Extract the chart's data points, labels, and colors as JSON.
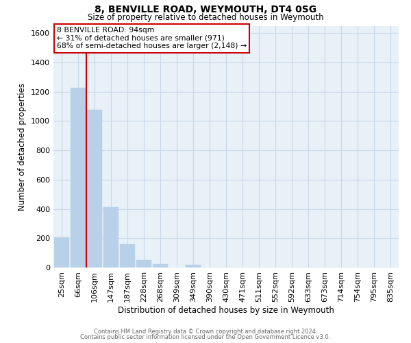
{
  "title": "8, BENVILLE ROAD, WEYMOUTH, DT4 0SG",
  "subtitle": "Size of property relative to detached houses in Weymouth",
  "xlabel": "Distribution of detached houses by size in Weymouth",
  "ylabel": "Number of detached properties",
  "footer_line1": "Contains HM Land Registry data © Crown copyright and database right 2024.",
  "footer_line2": "Contains public sector information licensed under the Open Government Licence v3.0.",
  "bar_labels": [
    "25sqm",
    "66sqm",
    "106sqm",
    "147sqm",
    "187sqm",
    "228sqm",
    "268sqm",
    "309sqm",
    "349sqm",
    "390sqm",
    "430sqm",
    "471sqm",
    "511sqm",
    "552sqm",
    "592sqm",
    "633sqm",
    "673sqm",
    "714sqm",
    "754sqm",
    "795sqm",
    "835sqm"
  ],
  "bar_values": [
    205,
    1225,
    1075,
    410,
    160,
    52,
    25,
    0,
    20,
    0,
    0,
    0,
    0,
    0,
    0,
    0,
    0,
    0,
    0,
    0,
    0
  ],
  "bar_color": "#b8d0e8",
  "annotation_line1": "8 BENVILLE ROAD: 94sqm",
  "annotation_line2": "← 31% of detached houses are smaller (971)",
  "annotation_line3": "68% of semi-detached houses are larger (2,148) →",
  "ylim": [
    0,
    1650
  ],
  "yticks": [
    0,
    200,
    400,
    600,
    800,
    1000,
    1200,
    1400,
    1600
  ],
  "red_line_color": "#cc0000",
  "grid_color": "#c8d8e8",
  "background_color": "#e8f0f8"
}
